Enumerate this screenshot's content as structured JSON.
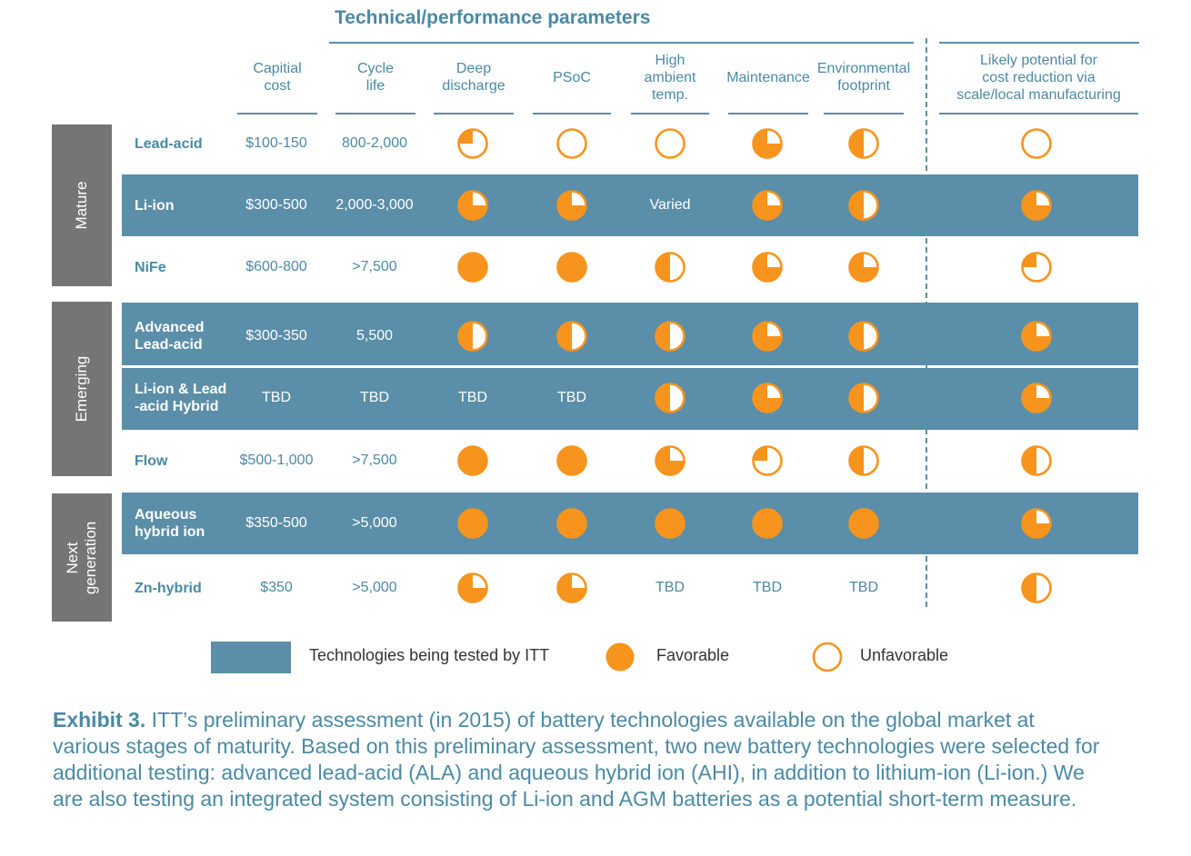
{
  "title": "Technical/performance parameters",
  "colors": {
    "accent": "#f7941d",
    "band": "#5b8ea8",
    "stage": "#757575",
    "text": "#4a8aa5"
  },
  "columns": [
    "Capitial\ncost",
    "Cycle\nlife",
    "Deep\ndischarge",
    "PSoC",
    "High\nambient\ntemp.",
    "Maintenance",
    "Environmental\nfootprint",
    "Likely potential for\ncost reduction via\nscale/local manufacturing"
  ],
  "stages": [
    "Mature",
    "Emerging",
    "Next\ngeneration"
  ],
  "rows": [
    {
      "tech": "Lead-acid",
      "cost": "$100-150",
      "cycle": "800-2,000",
      "ratings": [
        0.25,
        0,
        0,
        0.75,
        0.5,
        0
      ],
      "band": false
    },
    {
      "tech": "Li-ion",
      "cost": "$300-500",
      "cycle": "2,000-3,000",
      "ratings": [
        0.75,
        0.75,
        "Varied",
        0.75,
        0.5,
        0.75
      ],
      "band": true
    },
    {
      "tech": "NiFe",
      "cost": "$600-800",
      "cycle": ">7,500",
      "ratings": [
        1,
        1,
        0.5,
        0.75,
        0.75,
        0.25
      ],
      "band": false
    },
    {
      "tech": "Advanced\nLead-acid",
      "cost": "$300-350",
      "cycle": "5,500",
      "ratings": [
        0.5,
        0.5,
        0.5,
        0.75,
        0.5,
        0.75
      ],
      "band": true
    },
    {
      "tech": "Li-ion & Lead\n-acid Hybrid",
      "cost": "TBD",
      "cycle": "TBD",
      "ratings": [
        "TBD",
        "TBD",
        0.5,
        0.75,
        0.5,
        0.75
      ],
      "band": true
    },
    {
      "tech": "Flow",
      "cost": "$500-1,000",
      "cycle": ">7,500",
      "ratings": [
        1,
        1,
        0.75,
        0.25,
        0.5,
        0.5
      ],
      "band": false
    },
    {
      "tech": "Aqueous\nhybrid ion",
      "cost": "$350-500",
      "cycle": ">5,000",
      "ratings": [
        1,
        1,
        1,
        1,
        1,
        0.75
      ],
      "band": true
    },
    {
      "tech": "Zn-hybrid",
      "cost": "$350",
      "cycle": ">5,000",
      "ratings": [
        0.75,
        0.75,
        "TBD",
        "TBD",
        "TBD",
        0.5
      ],
      "band": false
    }
  ],
  "legend": {
    "tested": "Technologies being tested by ITT",
    "favorable": "Favorable",
    "unfavorable": "Unfavorable"
  },
  "caption": {
    "label": "Exhibit 3.",
    "text": " ITT’s preliminary assessment (in 2015) of battery technologies available on the global market at various stages of maturity. Based on this preliminary assessment, two new battery technologies were selected for additional testing: advanced lead-acid (ALA) and aqueous hybrid ion (AHI), in addition to lithium-ion (Li-ion.) We are also testing an integrated system consisting of Li-ion and AGM batteries as a potential short-term measure."
  }
}
